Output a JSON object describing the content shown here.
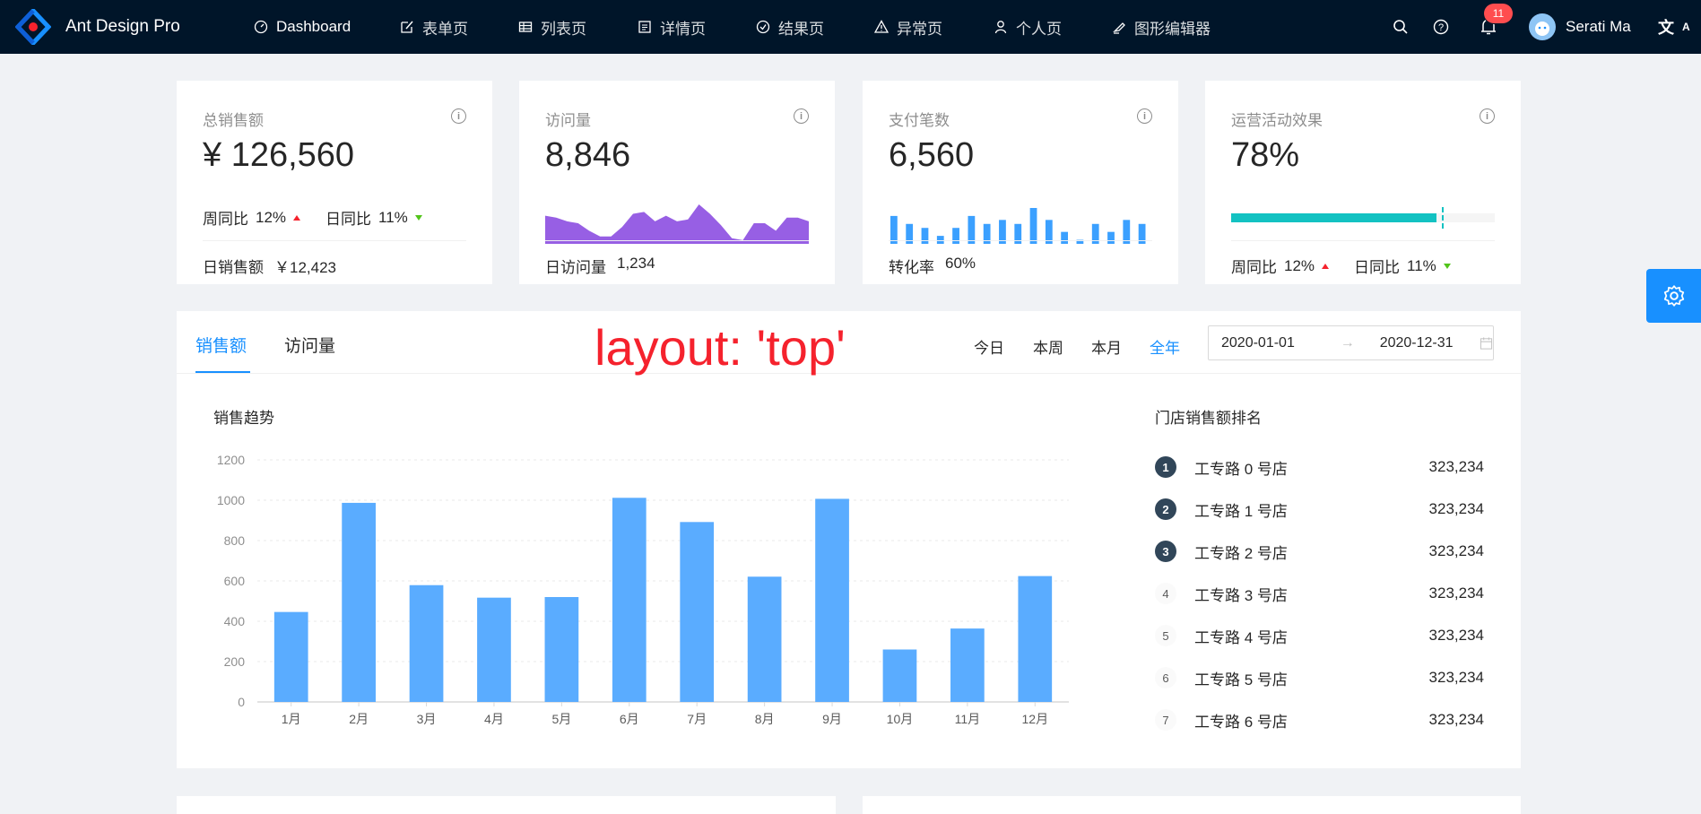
{
  "header": {
    "app_title": "Ant Design Pro",
    "nav": [
      {
        "label": "Dashboard",
        "icon": "dashboard-icon"
      },
      {
        "label": "表单页",
        "icon": "form-icon"
      },
      {
        "label": "列表页",
        "icon": "table-icon"
      },
      {
        "label": "详情页",
        "icon": "profile-icon"
      },
      {
        "label": "结果页",
        "icon": "check-circle-icon"
      },
      {
        "label": "异常页",
        "icon": "warning-icon"
      },
      {
        "label": "个人页",
        "icon": "user-icon"
      },
      {
        "label": "图形编辑器",
        "icon": "highlight-icon"
      }
    ],
    "notification_count": "11",
    "user_name": "Serati Ma"
  },
  "cards": [
    {
      "label": "总销售额",
      "value": "¥ 126,560",
      "week_label": "周同比",
      "week_value": "12%",
      "day_label": "日同比",
      "day_value": "11%",
      "footer_label": "日销售额",
      "footer_value": "￥12,423"
    },
    {
      "label": "访问量",
      "value": "8,846",
      "footer_label": "日访问量",
      "footer_value": "1,234",
      "area_values": [
        7,
        6.5,
        5.5,
        5,
        3,
        1.5,
        1.5,
        4,
        7.5,
        8,
        5.5,
        7,
        5.5,
        6,
        10,
        7.5,
        4.5,
        1,
        0.5,
        5,
        5,
        3,
        6.5,
        6.5,
        5.5
      ]
    },
    {
      "label": "支付笔数",
      "value": "6,560",
      "footer_label": "转化率",
      "footer_value": "60%",
      "bar_values": [
        7,
        5,
        4,
        2,
        4,
        7,
        5,
        6,
        5,
        9,
        6,
        3,
        1,
        5,
        3,
        6,
        5
      ]
    },
    {
      "label": "运营活动效果",
      "value": "78%",
      "progress": 78,
      "target": 80,
      "color": "#13c2c2",
      "week_label": "周同比",
      "week_value": "12%",
      "day_label": "日同比",
      "day_value": "11%"
    }
  ],
  "sales": {
    "tabs": [
      "销售额",
      "访问量"
    ],
    "ranges": [
      "今日",
      "本周",
      "本月",
      "全年"
    ],
    "start_date": "2020-01-01",
    "end_date": "2020-12-31",
    "annotation": "layout: 'top'",
    "ranking_title": "门店销售额排名",
    "ranking": [
      {
        "rank": "1",
        "name": "工专路 0 号店",
        "value": "323,234"
      },
      {
        "rank": "2",
        "name": "工专路 1 号店",
        "value": "323,234"
      },
      {
        "rank": "3",
        "name": "工专路 2 号店",
        "value": "323,234"
      },
      {
        "rank": "4",
        "name": "工专路 3 号店",
        "value": "323,234"
      },
      {
        "rank": "5",
        "name": "工专路 4 号店",
        "value": "323,234"
      },
      {
        "rank": "6",
        "name": "工专路 5 号店",
        "value": "323,234"
      },
      {
        "rank": "7",
        "name": "工专路 6 号店",
        "value": "323,234"
      }
    ]
  },
  "chart_data": {
    "type": "bar",
    "title": "销售趋势",
    "categories": [
      "1月",
      "2月",
      "3月",
      "4月",
      "5月",
      "6月",
      "7月",
      "8月",
      "9月",
      "10月",
      "11月",
      "12月"
    ],
    "values": [
      446,
      987,
      579,
      517,
      520,
      1012,
      892,
      621,
      1007,
      260,
      364,
      624
    ],
    "yticks": [
      "0",
      "200",
      "400",
      "600",
      "800",
      "1000",
      "1200"
    ],
    "ylim": [
      0,
      1200
    ],
    "grid": true,
    "color": "#5aacff",
    "xlabel": "",
    "ylabel": ""
  }
}
